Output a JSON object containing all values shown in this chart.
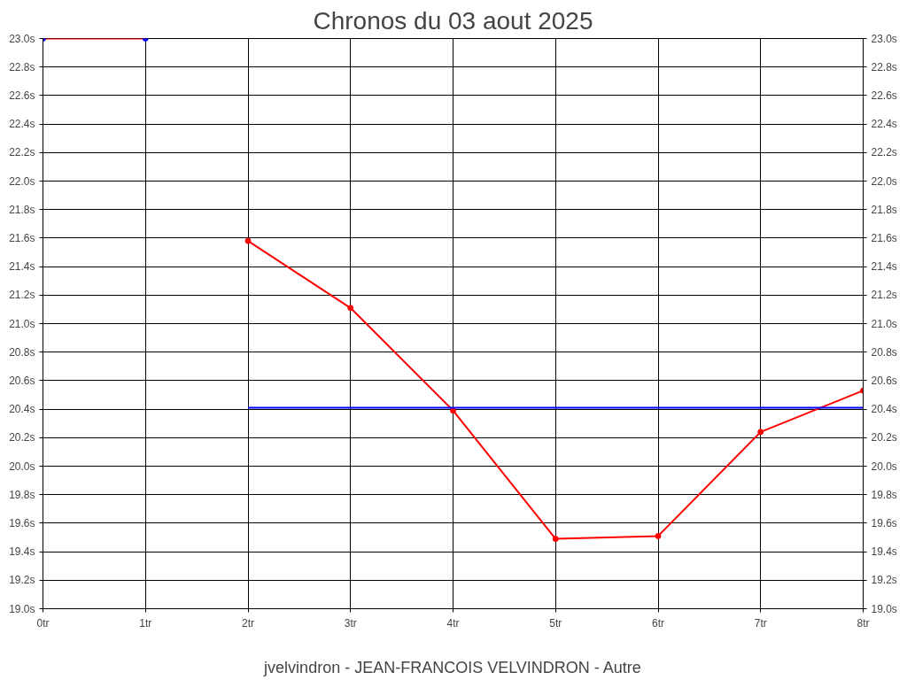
{
  "chart_data": {
    "type": "line",
    "title": "Chronos du 03 aout 2025",
    "xlabel": "jvelvindron - JEAN-FRANCOIS VELVINDRON - Autre",
    "series": [
      {
        "color": "#ff0000",
        "marker": "none",
        "x": [
          0,
          1
        ],
        "values": [
          23.0,
          23.0
        ]
      },
      {
        "type": "scatter",
        "color": "#0000ff",
        "x": [
          0,
          1
        ],
        "values": [
          23.0,
          23.0
        ]
      },
      {
        "color": "#ff0000",
        "marker": "circle",
        "x": [
          2,
          3,
          4,
          5,
          6,
          7,
          8
        ],
        "values": [
          21.58,
          21.11,
          20.39,
          19.49,
          19.51,
          20.24,
          20.53
        ]
      },
      {
        "color": "#0000ff",
        "marker": "none",
        "x": [
          2,
          8
        ],
        "values": [
          20.41,
          20.41
        ]
      }
    ],
    "xlim": [
      0,
      8
    ],
    "xticks": [
      {
        "value": 0,
        "label": "0tr"
      },
      {
        "value": 1,
        "label": "1tr"
      },
      {
        "value": 2,
        "label": "2tr"
      },
      {
        "value": 3,
        "label": "3tr"
      },
      {
        "value": 4,
        "label": "4tr"
      },
      {
        "value": 5,
        "label": "5tr"
      },
      {
        "value": 6,
        "label": "6tr"
      },
      {
        "value": 7,
        "label": "7tr"
      },
      {
        "value": 8,
        "label": "8tr"
      }
    ],
    "ylim": [
      19.0,
      23.0
    ],
    "yticks": [
      {
        "value": 19.0,
        "label": "19.0s"
      },
      {
        "value": 19.2,
        "label": "19.2s"
      },
      {
        "value": 19.4,
        "label": "19.4s"
      },
      {
        "value": 19.6,
        "label": "19.6s"
      },
      {
        "value": 19.8,
        "label": "19.8s"
      },
      {
        "value": 20.0,
        "label": "20.0s"
      },
      {
        "value": 20.2,
        "label": "20.2s"
      },
      {
        "value": 20.4,
        "label": "20.4s"
      },
      {
        "value": 20.6,
        "label": "20.6s"
      },
      {
        "value": 20.8,
        "label": "20.8s"
      },
      {
        "value": 21.0,
        "label": "21.0s"
      },
      {
        "value": 21.2,
        "label": "21.2s"
      },
      {
        "value": 21.4,
        "label": "21.4s"
      },
      {
        "value": 21.6,
        "label": "21.6s"
      },
      {
        "value": 21.8,
        "label": "21.8s"
      },
      {
        "value": 22.0,
        "label": "22.0s"
      },
      {
        "value": 22.2,
        "label": "22.2s"
      },
      {
        "value": 22.4,
        "label": "22.4s"
      },
      {
        "value": 22.6,
        "label": "22.6s"
      },
      {
        "value": 22.8,
        "label": "22.8s"
      },
      {
        "value": 23.0,
        "label": "23.0s"
      }
    ],
    "y2lim": [
      19.0,
      23.0
    ],
    "y2ticks": [
      {
        "value": 19.0,
        "label": "19.0s"
      },
      {
        "value": 19.2,
        "label": "19.2s"
      },
      {
        "value": 19.4,
        "label": "19.4s"
      },
      {
        "value": 19.6,
        "label": "19.6s"
      },
      {
        "value": 19.8,
        "label": "19.8s"
      },
      {
        "value": 20.0,
        "label": "20.0s"
      },
      {
        "value": 20.2,
        "label": "20.2s"
      },
      {
        "value": 20.4,
        "label": "20.4s"
      },
      {
        "value": 20.6,
        "label": "20.6s"
      },
      {
        "value": 20.8,
        "label": "20.8s"
      },
      {
        "value": 21.0,
        "label": "21.0s"
      },
      {
        "value": 21.2,
        "label": "21.2s"
      },
      {
        "value": 21.4,
        "label": "21.4s"
      },
      {
        "value": 21.6,
        "label": "21.6s"
      },
      {
        "value": 21.8,
        "label": "21.8s"
      },
      {
        "value": 22.0,
        "label": "22.0s"
      },
      {
        "value": 22.2,
        "label": "22.2s"
      },
      {
        "value": 22.4,
        "label": "22.4s"
      },
      {
        "value": 22.6,
        "label": "22.6s"
      },
      {
        "value": 22.8,
        "label": "22.8s"
      },
      {
        "value": 23.0,
        "label": "23.0s"
      }
    ],
    "grid": true,
    "marker": "circle",
    "line_style": "solid"
  }
}
